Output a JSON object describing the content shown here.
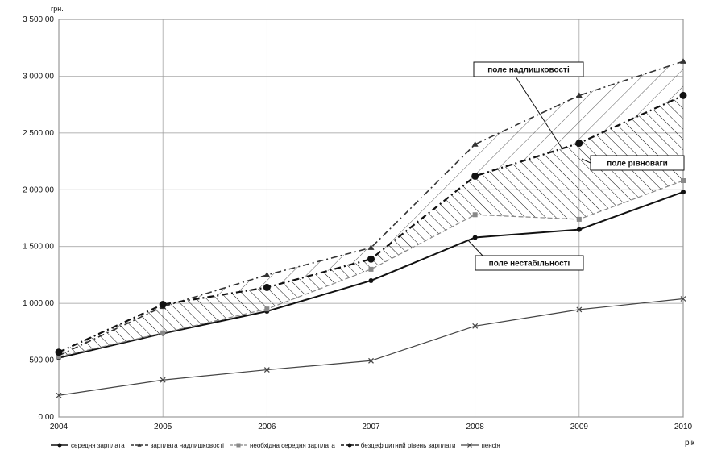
{
  "chart_data": {
    "type": "line",
    "y_unit": "грн.",
    "x_unit": "рік",
    "x": [
      "2004",
      "2005",
      "2006",
      "2007",
      "2008",
      "2009",
      "2010"
    ],
    "ylim": [
      0,
      3500
    ],
    "y_ticks": [
      "0,00",
      "500,00",
      "1 000,00",
      "1 500,00",
      "2 000,00",
      "2 500,00",
      "3 000,00",
      "3 500,00"
    ],
    "grid": true,
    "legend_position": "bottom",
    "series": [
      {
        "name": "середня зарплата",
        "values": [
          520,
          735,
          930,
          1200,
          1580,
          1650,
          1980
        ],
        "color": "#111111"
      },
      {
        "name": "зарплата надлишковості",
        "values": [
          540,
          970,
          1250,
          1490,
          2400,
          2830,
          3130
        ],
        "color": "#333333"
      },
      {
        "name": "необхідна середня зарплата",
        "values": [
          530,
          740,
          950,
          1300,
          1780,
          1740,
          2080
        ],
        "color": "#888888"
      },
      {
        "name": "бездефіцитний рівень зарплати",
        "values": [
          570,
          990,
          1140,
          1390,
          2120,
          2410,
          2830
        ],
        "color": "#111111"
      },
      {
        "name": "пенсія",
        "values": [
          190,
          325,
          415,
          495,
          800,
          945,
          1040
        ],
        "color": "#444444"
      }
    ],
    "annotations": [
      {
        "text": "поле надлишковості"
      },
      {
        "text": "поле рівноваги"
      },
      {
        "text": "поле нестабільності"
      }
    ]
  }
}
